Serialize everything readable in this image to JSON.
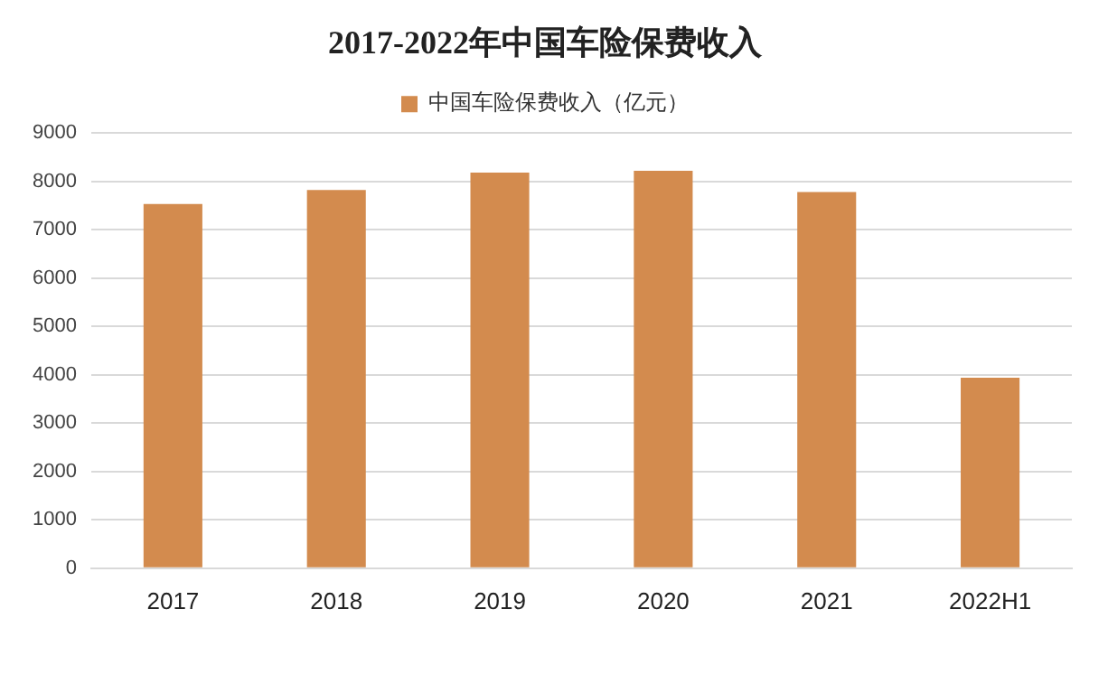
{
  "chart_data": {
    "type": "bar",
    "title": "2017-2022年中国车险保费收入",
    "categories": [
      "2017",
      "2018",
      "2019",
      "2020",
      "2021",
      "2022H1"
    ],
    "series": [
      {
        "name": "中国车险保费收入（亿元）",
        "color": "#d38b4e",
        "values": [
          7530,
          7820,
          8180,
          8220,
          7780,
          3940
        ]
      }
    ],
    "ylim": [
      0,
      9000
    ],
    "yticks": [
      0,
      1000,
      2000,
      3000,
      4000,
      5000,
      6000,
      7000,
      8000,
      9000
    ],
    "grid": "y",
    "legend": "top"
  }
}
